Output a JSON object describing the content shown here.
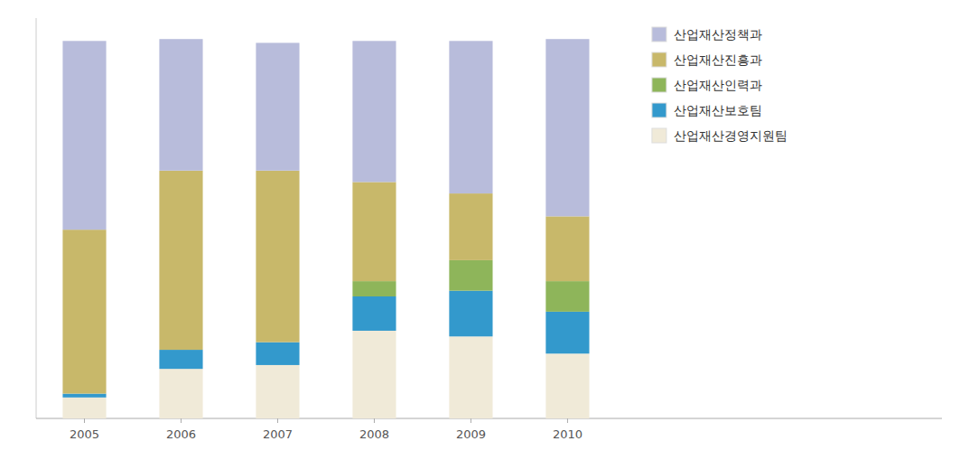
{
  "chart_data": {
    "type": "bar",
    "stacked": true,
    "categories": [
      "2005",
      "2006",
      "2007",
      "2008",
      "2009",
      "2010"
    ],
    "series": [
      {
        "name": "산업재산경영지원팀",
        "color": "#f0ead8",
        "values": [
          0.055,
          0.13,
          0.14,
          0.23,
          0.215,
          0.17
        ]
      },
      {
        "name": "산업재산보호팀",
        "color": "#3399cc",
        "values": [
          0.01,
          0.05,
          0.06,
          0.09,
          0.12,
          0.11
        ]
      },
      {
        "name": "산업재산인력과",
        "color": "#8eb55a",
        "values": [
          0.0,
          0.0,
          0.0,
          0.04,
          0.08,
          0.08
        ]
      },
      {
        "name": "산업재산진흥과",
        "color": "#c8b86a",
        "values": [
          0.43,
          0.47,
          0.45,
          0.26,
          0.175,
          0.17
        ]
      },
      {
        "name": "산업재산정책과",
        "color": "#b8bcdb",
        "values": [
          0.495,
          0.345,
          0.335,
          0.37,
          0.4,
          0.465
        ]
      }
    ],
    "ylim": [
      0,
      1.05
    ],
    "yticks": [],
    "grid": false,
    "legend": "upper right",
    "tick_labels": "x"
  }
}
